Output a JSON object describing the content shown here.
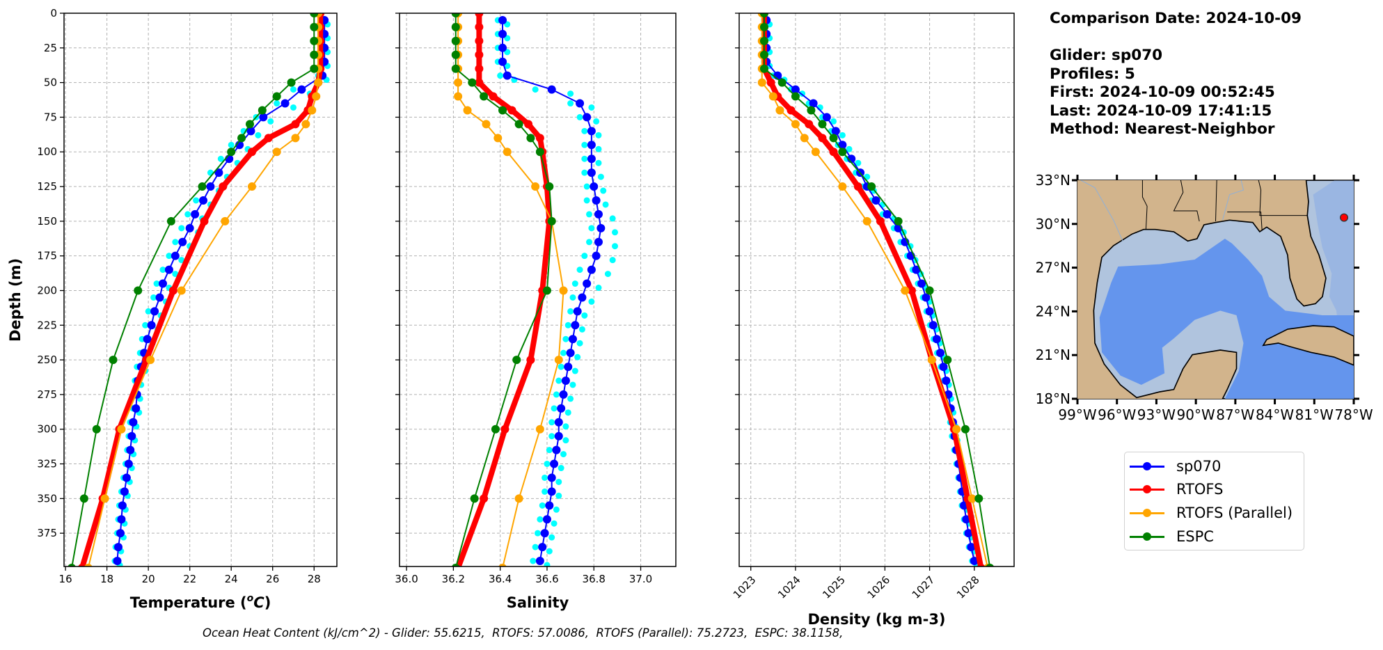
{
  "info": {
    "comparison_date": "Comparison Date: 2024-10-09",
    "glider": "Glider: sp070",
    "profiles": "Profiles: 5",
    "first": "First: 2024-10-09 00:52:45",
    "last": "Last: 2024-10-09 17:41:15",
    "method": "Method: Nearest-Neighbor"
  },
  "legend": [
    {
      "label": "sp070",
      "color": "#0000ff"
    },
    {
      "label": "RTOFS",
      "color": "#ff0000"
    },
    {
      "label": "RTOFS (Parallel)",
      "color": "#ffa500"
    },
    {
      "label": "ESPC",
      "color": "#008000"
    }
  ],
  "glider_profile_color": "#00ffff",
  "ohc_text": "Ocean Heat Content (kJ/cm^2) - Glider: 55.6215,  RTOFS: 57.0086,  RTOFS (Parallel): 75.2723,  ESPC: 38.1158,",
  "map": {
    "extent": {
      "lon": [
        -99,
        -78
      ],
      "lat": [
        18,
        33
      ]
    },
    "lat_ticks": [
      33,
      30,
      27,
      24,
      21,
      18
    ],
    "lat_labels": [
      "33°N",
      "30°N",
      "27°N",
      "24°N",
      "21°N",
      "18°N"
    ],
    "lon_ticks": [
      -99,
      -96,
      -93,
      -90,
      -87,
      -84,
      -81,
      -78
    ],
    "lon_labels": [
      "99°W",
      "96°W",
      "93°W",
      "90°W",
      "87°W",
      "84°W",
      "81°W",
      "78°W"
    ],
    "glider_position": {
      "lat": 30.44,
      "lon": -78.74
    },
    "colors": {
      "land": "#d2b48c",
      "shelf": "#b0c4de",
      "slope": "#9ab6e2",
      "deep": "#6495ed",
      "marker": "#ff0000"
    }
  },
  "chart_data": {
    "type": "line",
    "depth_axis": {
      "label": "Depth (m)",
      "ylim": [
        0,
        399
      ],
      "inverted": true,
      "ticks": [
        0,
        25,
        50,
        75,
        100,
        125,
        150,
        175,
        200,
        225,
        250,
        275,
        300,
        325,
        350,
        375
      ]
    },
    "grid": true,
    "glider_depths": [
      5,
      15,
      25,
      35,
      45,
      55,
      65,
      75,
      85,
      95,
      105,
      115,
      125,
      135,
      145,
      155,
      165,
      175,
      185,
      195,
      205,
      215,
      225,
      235,
      245,
      255,
      265,
      275,
      285,
      295,
      305,
      315,
      325,
      335,
      345,
      355,
      365,
      375,
      385,
      395
    ],
    "model_depths": [
      0,
      10,
      20,
      30,
      40,
      50,
      60,
      70,
      80,
      90,
      100,
      125,
      150,
      200,
      250,
      300,
      350,
      400
    ],
    "panels": [
      {
        "id": "temperature",
        "xlabel": {
          "prefix": "Temperature (",
          "sup": "o",
          "unit": "C",
          "suffix": ")"
        },
        "xlim": [
          15.93,
          29.1
        ],
        "xticks": [
          16,
          18,
          20,
          22,
          24,
          26,
          28
        ],
        "xtick_labels": [
          "16",
          "18",
          "20",
          "22",
          "24",
          "26",
          "28"
        ],
        "show_yticklabels": true,
        "sp070": [
          28.5,
          28.5,
          28.5,
          28.5,
          28.4,
          27.4,
          26.6,
          25.55,
          24.95,
          24.4,
          23.9,
          23.4,
          23.0,
          22.65,
          22.25,
          22.0,
          21.65,
          21.3,
          21.0,
          20.7,
          20.55,
          20.3,
          20.15,
          19.95,
          19.8,
          19.65,
          19.5,
          19.45,
          19.4,
          19.27,
          19.2,
          19.13,
          19.05,
          18.95,
          18.85,
          18.75,
          18.7,
          18.65,
          18.55,
          18.5
        ],
        "profiles_min": [
          28.35,
          28.35,
          28.35,
          28.35,
          28.2,
          27.0,
          26.2,
          25.2,
          24.6,
          24.0,
          23.5,
          23.0,
          22.6,
          22.3,
          21.9,
          21.6,
          21.3,
          21.0,
          20.7,
          20.4,
          20.25,
          20.0,
          19.85,
          19.7,
          19.6,
          19.45,
          19.35,
          19.3,
          19.25,
          19.12,
          19.05,
          18.98,
          18.9,
          18.8,
          18.7,
          18.6,
          18.55,
          18.5,
          18.42,
          18.38
        ],
        "profiles_max": [
          28.65,
          28.65,
          28.65,
          28.65,
          28.6,
          27.8,
          27.0,
          25.9,
          25.3,
          24.8,
          24.3,
          23.8,
          23.4,
          23.0,
          22.6,
          22.4,
          22.0,
          21.6,
          21.3,
          21.0,
          20.85,
          20.6,
          20.45,
          20.2,
          20.0,
          19.85,
          19.65,
          19.6,
          19.55,
          19.42,
          19.35,
          19.28,
          19.2,
          19.1,
          19.0,
          18.9,
          18.85,
          18.8,
          18.68,
          18.62
        ],
        "rtofs": [
          28.3,
          28.3,
          28.3,
          28.3,
          28.3,
          28.2,
          27.9,
          27.7,
          27.1,
          25.8,
          25.0,
          23.6,
          22.7,
          21.2,
          19.9,
          18.6,
          17.8,
          16.8
        ],
        "rtofs_parallel": [
          28.2,
          28.2,
          28.2,
          28.2,
          28.2,
          28.2,
          28.1,
          27.9,
          27.6,
          27.1,
          26.2,
          25.0,
          23.7,
          21.6,
          20.1,
          18.7,
          17.9,
          17.1
        ],
        "espc": [
          28.0,
          28.0,
          28.0,
          28.0,
          28.0,
          26.9,
          26.2,
          25.5,
          24.9,
          24.5,
          24.0,
          22.6,
          21.1,
          19.5,
          18.3,
          17.5,
          16.9,
          16.3
        ]
      },
      {
        "id": "salinity",
        "xlabel": {
          "prefix": "Salinity",
          "sup": "",
          "unit": "",
          "suffix": ""
        },
        "xlim": [
          35.97,
          37.15
        ],
        "xticks": [
          36.0,
          36.2,
          36.4,
          36.6,
          36.8,
          37.0
        ],
        "xtick_labels": [
          "36.0",
          "36.2",
          "36.4",
          "36.6",
          "36.8",
          "37.0"
        ],
        "show_yticklabels": false,
        "sp070": [
          36.41,
          36.41,
          36.41,
          36.41,
          36.43,
          36.62,
          36.74,
          36.77,
          36.79,
          36.79,
          36.79,
          36.79,
          36.8,
          36.81,
          36.82,
          36.83,
          36.82,
          36.81,
          36.79,
          36.77,
          36.75,
          36.73,
          36.72,
          36.71,
          36.7,
          36.69,
          36.68,
          36.67,
          36.66,
          36.65,
          36.65,
          36.64,
          36.63,
          36.62,
          36.62,
          36.61,
          36.6,
          36.59,
          36.58,
          36.57
        ],
        "profiles_min": [
          36.39,
          36.39,
          36.39,
          36.39,
          36.4,
          36.55,
          36.7,
          36.74,
          36.76,
          36.76,
          36.76,
          36.76,
          36.77,
          36.77,
          36.78,
          36.79,
          36.78,
          36.76,
          36.74,
          36.72,
          36.71,
          36.7,
          36.69,
          36.68,
          36.67,
          36.66,
          36.65,
          36.64,
          36.63,
          36.62,
          36.62,
          36.61,
          36.6,
          36.59,
          36.59,
          36.58,
          36.57,
          36.56,
          36.55,
          36.54
        ],
        "profiles_max": [
          36.43,
          36.43,
          36.43,
          36.43,
          36.46,
          36.7,
          36.79,
          36.81,
          36.82,
          36.82,
          36.82,
          36.83,
          36.84,
          36.85,
          36.88,
          36.89,
          36.89,
          36.88,
          36.86,
          36.82,
          36.79,
          36.76,
          36.75,
          36.74,
          36.73,
          36.72,
          36.71,
          36.7,
          36.69,
          36.68,
          36.68,
          36.67,
          36.66,
          36.65,
          36.65,
          36.64,
          36.63,
          36.62,
          36.61,
          36.6
        ],
        "rtofs": [
          36.31,
          36.31,
          36.31,
          36.31,
          36.31,
          36.31,
          36.37,
          36.45,
          36.52,
          36.57,
          36.58,
          36.6,
          36.61,
          36.58,
          36.53,
          36.42,
          36.33,
          36.22
        ],
        "rtofs_parallel": [
          36.22,
          36.22,
          36.22,
          36.22,
          36.22,
          36.22,
          36.22,
          36.26,
          36.34,
          36.39,
          36.43,
          36.55,
          36.62,
          36.67,
          36.65,
          36.57,
          36.48,
          36.41
        ],
        "espc": [
          36.21,
          36.21,
          36.21,
          36.21,
          36.21,
          36.28,
          36.33,
          36.41,
          36.48,
          36.53,
          36.57,
          36.61,
          36.62,
          36.6,
          36.47,
          36.38,
          36.29,
          36.21
        ]
      },
      {
        "id": "density",
        "xlabel": {
          "prefix": "Density (kg m-3)",
          "sup": "",
          "unit": "",
          "suffix": ""
        },
        "xlim": [
          1022.74,
          1028.89
        ],
        "xticks": [
          1023,
          1024,
          1025,
          1026,
          1027,
          1028
        ],
        "xtick_labels": [
          "1023",
          "1024",
          "1025",
          "1026",
          "1027",
          "1028"
        ],
        "rotate_xticks": true,
        "show_yticklabels": false,
        "sp070": [
          1023.35,
          1023.35,
          1023.35,
          1023.35,
          1023.6,
          1024.0,
          1024.4,
          1024.7,
          1024.9,
          1025.05,
          1025.25,
          1025.45,
          1025.6,
          1025.8,
          1026.05,
          1026.3,
          1026.45,
          1026.58,
          1026.7,
          1026.82,
          1026.92,
          1027.0,
          1027.08,
          1027.16,
          1027.24,
          1027.31,
          1027.37,
          1027.42,
          1027.47,
          1027.52,
          1027.56,
          1027.6,
          1027.65,
          1027.69,
          1027.73,
          1027.77,
          1027.82,
          1027.87,
          1027.93,
          1028.0
        ],
        "profiles_min": [
          1023.3,
          1023.3,
          1023.3,
          1023.3,
          1023.5,
          1023.9,
          1024.3,
          1024.6,
          1024.8,
          1024.95,
          1025.15,
          1025.35,
          1025.5,
          1025.7,
          1025.95,
          1026.2,
          1026.35,
          1026.5,
          1026.62,
          1026.74,
          1026.85,
          1026.93,
          1027.01,
          1027.09,
          1027.17,
          1027.25,
          1027.31,
          1027.36,
          1027.41,
          1027.46,
          1027.5,
          1027.55,
          1027.6,
          1027.64,
          1027.68,
          1027.72,
          1027.77,
          1027.82,
          1027.88,
          1027.95
        ],
        "profiles_max": [
          1023.42,
          1023.42,
          1023.42,
          1023.42,
          1023.75,
          1024.15,
          1024.55,
          1024.85,
          1025.05,
          1025.2,
          1025.4,
          1025.6,
          1025.75,
          1025.95,
          1026.2,
          1026.42,
          1026.57,
          1026.68,
          1026.8,
          1026.9,
          1027.0,
          1027.07,
          1027.15,
          1027.23,
          1027.3,
          1027.37,
          1027.43,
          1027.48,
          1027.53,
          1027.58,
          1027.62,
          1027.66,
          1027.71,
          1027.75,
          1027.79,
          1027.83,
          1027.88,
          1027.93,
          1027.99,
          1028.05
        ],
        "rtofs": [
          1023.3,
          1023.3,
          1023.3,
          1023.3,
          1023.3,
          1023.45,
          1023.6,
          1023.9,
          1024.3,
          1024.6,
          1024.85,
          1025.4,
          1025.9,
          1026.6,
          1027.05,
          1027.55,
          1027.85,
          1028.15
        ],
        "rtofs_parallel": [
          1023.25,
          1023.25,
          1023.25,
          1023.25,
          1023.25,
          1023.25,
          1023.5,
          1023.65,
          1024.0,
          1024.2,
          1024.45,
          1025.05,
          1025.6,
          1026.45,
          1027.05,
          1027.6,
          1027.95,
          1028.3
        ],
        "espc": [
          1023.3,
          1023.3,
          1023.3,
          1023.3,
          1023.3,
          1023.7,
          1024.0,
          1024.35,
          1024.6,
          1024.85,
          1025.05,
          1025.7,
          1026.3,
          1027.0,
          1027.4,
          1027.8,
          1028.1,
          1028.35
        ]
      }
    ]
  }
}
